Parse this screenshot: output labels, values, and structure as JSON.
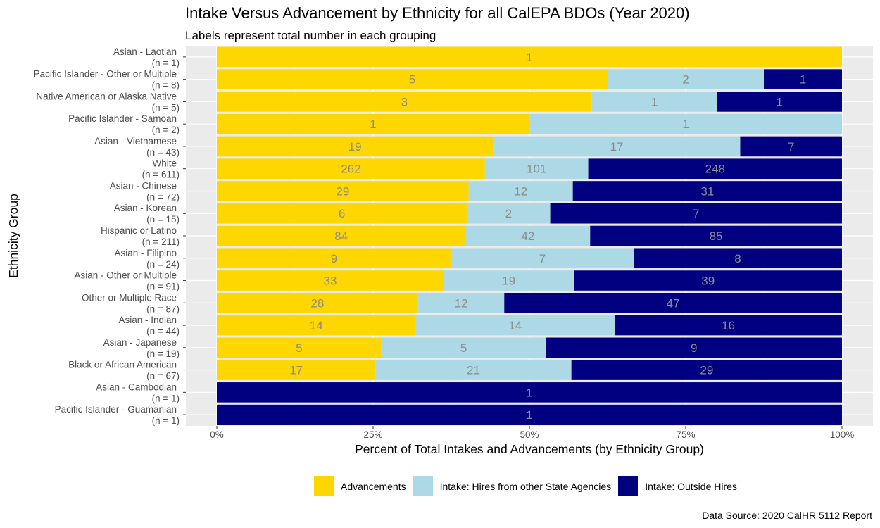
{
  "title": "Intake Versus Advancement by Ethnicity for all CalEPA BDOs (Year 2020)",
  "subtitle": "Labels represent total number in each grouping",
  "caption": "Data Source: 2020 CalHR 5112 Report",
  "legend_items": [
    {
      "label": "Advancements",
      "color": "#FFD700"
    },
    {
      "label": "Intake: Hires from other State Agencies",
      "color": "#ADD8E6"
    },
    {
      "label": "Intake: Outside Hires",
      "color": "#000080"
    }
  ],
  "chart_data": {
    "type": "bar",
    "orientation": "horizontal",
    "stacked": "percent",
    "xlabel": "Percent of Total Intakes and Advancements (by Ethnicity Group)",
    "ylabel": "Ethnicity Group",
    "xlim": [
      0,
      100
    ],
    "x_ticks": [
      "0%",
      "25%",
      "50%",
      "75%",
      "100%"
    ],
    "grid": true,
    "legend_position": "bottom",
    "categories": [
      "Asian - Laotian",
      "Pacific Islander - Other or Multiple",
      "Native American or Alaska Native",
      "Pacific Islander - Samoan",
      "Asian - Vietnamese",
      "White",
      "Asian - Chinese",
      "Asian - Korean",
      "Hispanic or Latino",
      "Asian - Filipino",
      "Asian - Other or Multiple",
      "Other or Multiple Race",
      "Asian - Indian",
      "Asian - Japanese",
      "Black or African American",
      "Asian - Cambodian",
      "Pacific Islander - Guamanian"
    ],
    "category_n": [
      "(n = 1)",
      "(n = 8)",
      "(n = 5)",
      "(n = 2)",
      "(n = 43)",
      "(n = 611)",
      "(n = 72)",
      "(n = 15)",
      "(n = 211)",
      "(n = 24)",
      "(n = 91)",
      "(n = 87)",
      "(n = 44)",
      "(n = 19)",
      "(n = 67)",
      "(n = 1)",
      "(n = 1)"
    ],
    "series": [
      {
        "name": "Advancements",
        "color": "#FFD700",
        "values": [
          1,
          5,
          3,
          1,
          19,
          262,
          29,
          6,
          84,
          9,
          33,
          28,
          14,
          5,
          17,
          0,
          0
        ]
      },
      {
        "name": "Intake: Hires from other State Agencies",
        "color": "#ADD8E6",
        "values": [
          0,
          2,
          1,
          1,
          17,
          101,
          12,
          2,
          42,
          7,
          19,
          12,
          14,
          5,
          21,
          0,
          0
        ]
      },
      {
        "name": "Intake: Outside Hires",
        "color": "#000080",
        "values": [
          0,
          1,
          1,
          0,
          7,
          248,
          31,
          7,
          85,
          8,
          39,
          47,
          16,
          9,
          29,
          1,
          1
        ]
      }
    ]
  }
}
